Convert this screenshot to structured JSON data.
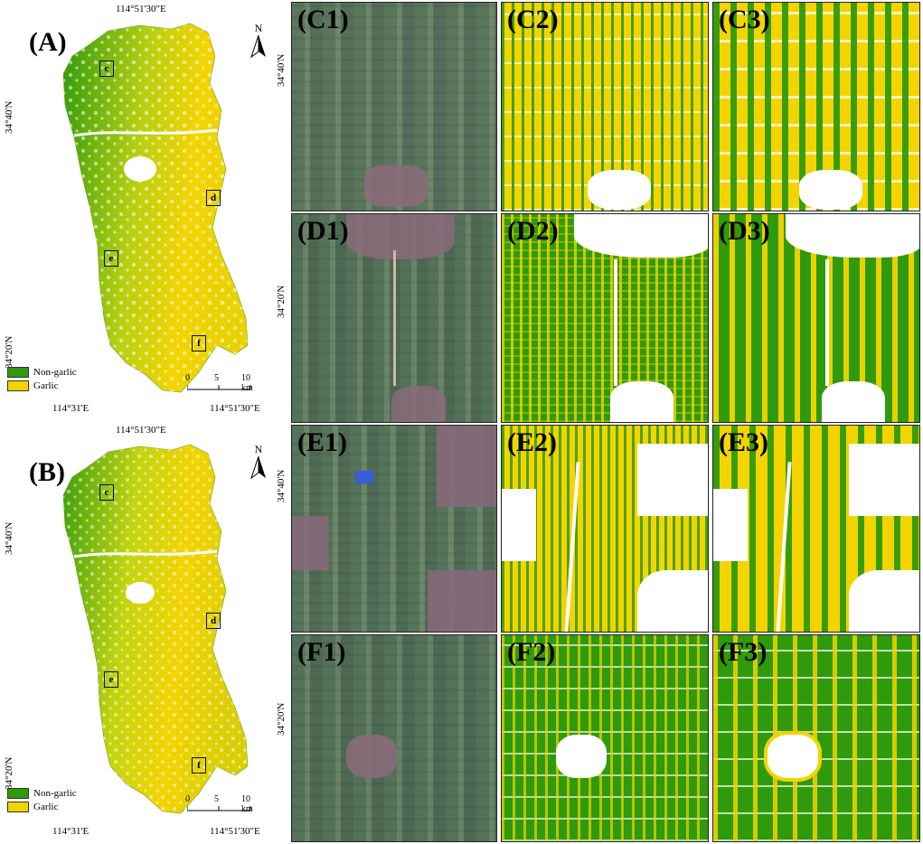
{
  "colors": {
    "non_garlic": "#2f9a0b",
    "garlic": "#f3d400",
    "cloud": "#ffffff",
    "frame": "#222222"
  },
  "maps": [
    {
      "label": "(A)",
      "top_coord": "114°51'30\"E",
      "bottom_left_coord": "114°31'E",
      "bottom_right_coord": "114°51'30\"E",
      "left_coord_upper": "34°40'N",
      "left_coord_lower": "34°20'N",
      "north": "N",
      "legend": [
        {
          "name": "Non-garlic",
          "color_key": "non_garlic"
        },
        {
          "name": "Garlic",
          "color_key": "garlic"
        }
      ],
      "scale": {
        "ticks": [
          "0",
          "5",
          "10 km"
        ]
      },
      "boxes": [
        "c",
        "d",
        "e",
        "f"
      ]
    },
    {
      "label": "(B)",
      "top_coord": "114°51'30\"E",
      "bottom_left_coord": "114°31'E",
      "bottom_right_coord": "114°51'30\"E",
      "left_coord_upper": "34°40'N",
      "left_coord_lower": "34°20'N",
      "north": "N",
      "legend": [
        {
          "name": "Non-garlic",
          "color_key": "non_garlic"
        },
        {
          "name": "Garlic",
          "color_key": "garlic"
        }
      ],
      "scale": {
        "ticks": [
          "0",
          "5",
          "10 km"
        ]
      },
      "boxes": [
        "c",
        "d",
        "e",
        "f"
      ]
    }
  ],
  "grid": {
    "rows": [
      {
        "left_coord": "34°40'N",
        "panels": [
          "(C1)",
          "(C2)",
          "(C3)"
        ]
      },
      {
        "left_coord": "34°20'N",
        "panels": [
          "(D1)",
          "(D2)",
          "(D3)"
        ]
      },
      {
        "left_coord": "34°40'N",
        "panels": [
          "(E1)",
          "(E2)",
          "(E3)"
        ]
      },
      {
        "left_coord": "34°20'N",
        "panels": [
          "(F1)",
          "(F2)",
          "(F3)"
        ]
      }
    ]
  }
}
